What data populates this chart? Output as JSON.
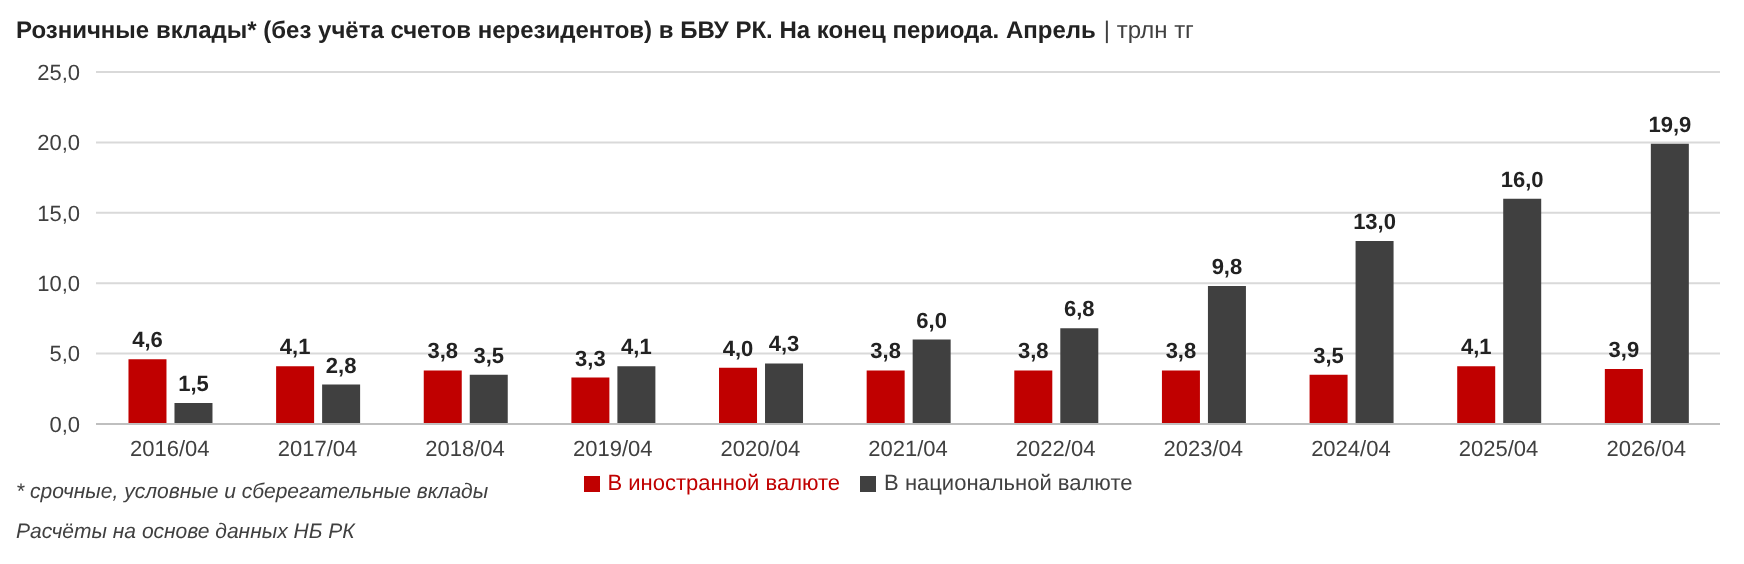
{
  "chart_data": {
    "type": "bar",
    "title": "Розничные вклады* (без учёта счетов нерезидентов) в БВУ РК. На конец периода. Апрель",
    "subtitle": "| трлн тг",
    "categories": [
      "2016/04",
      "2017/04",
      "2018/04",
      "2019/04",
      "2020/04",
      "2021/04",
      "2022/04",
      "2023/04",
      "2024/04",
      "2025/04",
      "2026/04"
    ],
    "series": [
      {
        "name": "В иностранной валюте",
        "color": "#c00000",
        "values": [
          4.6,
          4.1,
          3.8,
          3.3,
          4.0,
          3.8,
          3.8,
          3.8,
          3.5,
          4.1,
          3.9
        ],
        "value_labels": [
          "4,6",
          "4,1",
          "3,8",
          "3,3",
          "4,0",
          "3,8",
          "3,8",
          "3,8",
          "3,5",
          "4,1",
          "3,9"
        ]
      },
      {
        "name": "В национальной валюте",
        "color": "#404040",
        "values": [
          1.5,
          2.8,
          3.5,
          4.1,
          4.3,
          6.0,
          6.8,
          9.8,
          13.0,
          16.0,
          19.9
        ],
        "value_labels": [
          "1,5",
          "2,8",
          "3,5",
          "4,1",
          "4,3",
          "6,0",
          "6,8",
          "9,8",
          "13,0",
          "16,0",
          "19,9"
        ]
      }
    ],
    "ylim": [
      0,
      25
    ],
    "yticks": [
      {
        "value": 0,
        "label": "0,0"
      },
      {
        "value": 5,
        "label": "5,0"
      },
      {
        "value": 10,
        "label": "10,0"
      },
      {
        "value": 15,
        "label": "15,0"
      },
      {
        "value": 20,
        "label": "20,0"
      },
      {
        "value": 25,
        "label": "25,0"
      }
    ],
    "grid": "y",
    "legend": "bottom",
    "annotations": [
      "* срочные, условные и сберегательные вклады",
      "Расчёты на основе данных НБ РК"
    ]
  }
}
